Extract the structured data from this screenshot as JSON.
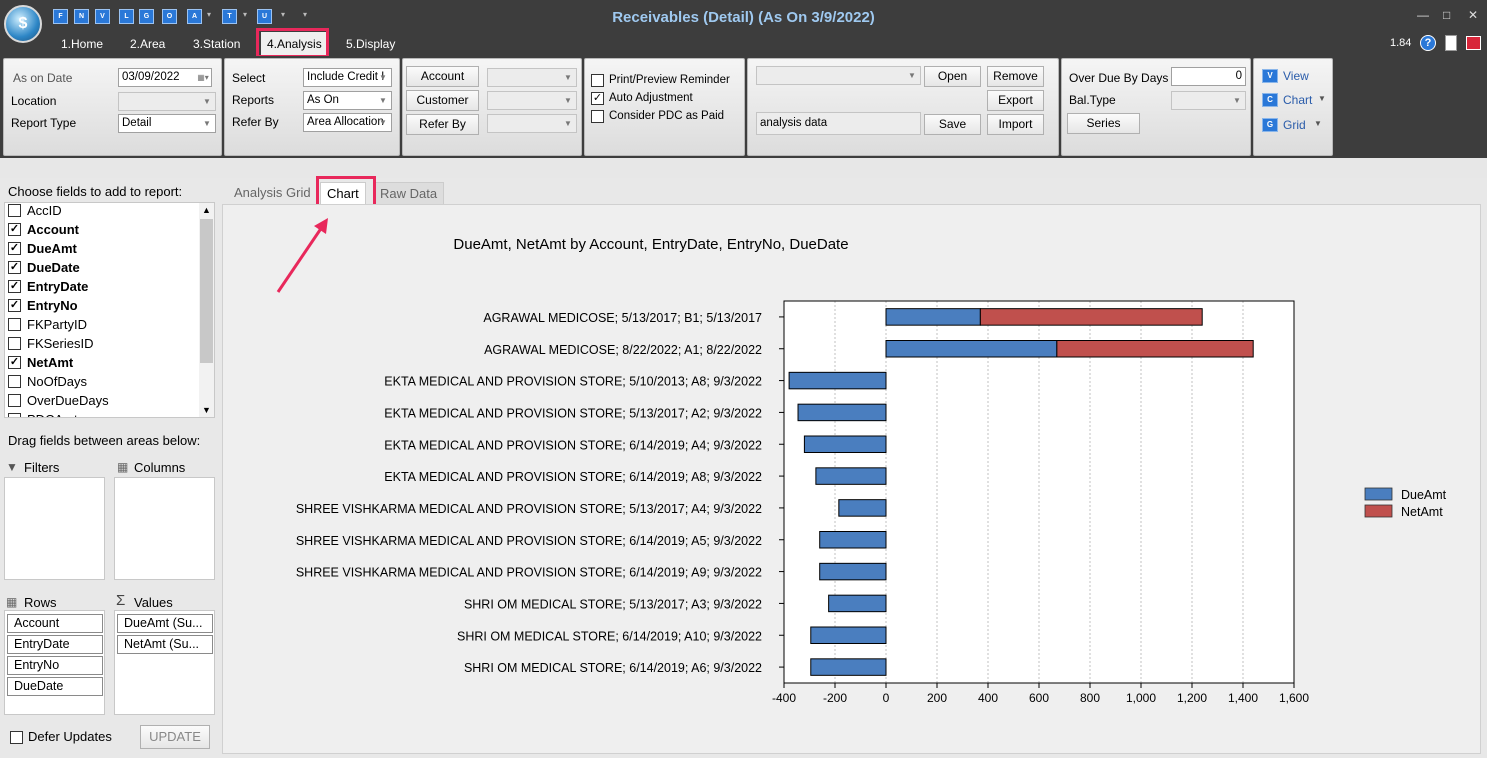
{
  "window": {
    "title": "Receivables (Detail) (As On 3/9/2022)",
    "version": "1.84"
  },
  "qat": [
    "F",
    "N",
    "V",
    "L",
    "G",
    "O",
    "A",
    "T",
    "U"
  ],
  "menu_tabs": [
    "1.Home",
    "2.Area",
    "3.Station",
    "4.Analysis",
    "5.Display"
  ],
  "ribbon": {
    "as_on_date_label": "As on Date",
    "as_on_date": "03/09/2022",
    "location_label": "Location",
    "report_type_label": "Report Type",
    "report_type": "Detail",
    "select_label": "Select",
    "select_value": "Include Credit I",
    "reports_label": "Reports",
    "reports_value": "As On",
    "refer_by_label": "Refer By",
    "refer_by_value": "Area Allocation",
    "account_btn": "Account",
    "customer_btn": "Customer",
    "refer_by_btn": "Refer By",
    "print_preview_reminder": "Print/Preview Reminder",
    "auto_adjustment": "Auto Adjustment",
    "consider_pdc": "Consider PDC as Paid",
    "analysis_data": "analysis data",
    "open_btn": "Open",
    "remove_btn": "Remove",
    "export_btn": "Export",
    "save_btn": "Save",
    "import_btn": "Import",
    "over_due_label": "Over Due By Days",
    "over_due_value": "0",
    "bal_type_label": "Bal.Type",
    "series_btn": "Series",
    "view_btn": "View",
    "chart_btn": "Chart",
    "grid_btn": "Grid"
  },
  "field_list": {
    "heading": "Choose fields to add to report:",
    "fields": [
      {
        "name": "AccID",
        "checked": false
      },
      {
        "name": "Account",
        "checked": true
      },
      {
        "name": "DueAmt",
        "checked": true
      },
      {
        "name": "DueDate",
        "checked": true
      },
      {
        "name": "EntryDate",
        "checked": true
      },
      {
        "name": "EntryNo",
        "checked": true
      },
      {
        "name": "FKPartyID",
        "checked": false
      },
      {
        "name": "FKSeriesID",
        "checked": false
      },
      {
        "name": "NetAmt",
        "checked": true
      },
      {
        "name": "NoOfDays",
        "checked": false
      },
      {
        "name": "OverDueDays",
        "checked": false
      },
      {
        "name": "PDCAmt",
        "checked": false
      }
    ],
    "drag_heading": "Drag fields between areas below:",
    "filters_label": "Filters",
    "columns_label": "Columns",
    "rows_label": "Rows",
    "values_label": "Values",
    "rows": [
      "Account",
      "EntryDate",
      "EntryNo",
      "DueDate"
    ],
    "values": [
      "DueAmt (Su...",
      "NetAmt (Su..."
    ],
    "defer_updates": "Defer Updates",
    "update_btn": "UPDATE"
  },
  "tabs": [
    "Analysis Grid",
    "Chart",
    "Raw Data"
  ],
  "chart_data": {
    "type": "bar",
    "orientation": "horizontal",
    "stacked": true,
    "title": "DueAmt, NetAmt by Account, EntryDate, EntryNo, DueDate",
    "categories": [
      "AGRAWAL MEDICOSE; 5/13/2017; B1; 5/13/2017",
      "AGRAWAL MEDICOSE; 8/22/2022; A1; 8/22/2022",
      "EKTA MEDICAL AND PROVISION STORE; 5/10/2013; A8; 9/3/2022",
      "EKTA MEDICAL AND PROVISION STORE; 5/13/2017; A2; 9/3/2022",
      "EKTA MEDICAL AND PROVISION STORE; 6/14/2019; A4; 9/3/2022",
      "EKTA MEDICAL AND PROVISION STORE; 6/14/2019; A8; 9/3/2022",
      "SHREE VISHKARMA MEDICAL AND PROVISION STORE; 5/13/2017; A4; 9/3/2022",
      "SHREE VISHKARMA MEDICAL AND PROVISION STORE; 6/14/2019; A5; 9/3/2022",
      "SHREE VISHKARMA MEDICAL AND PROVISION STORE; 6/14/2019; A9; 9/3/2022",
      "SHRI OM MEDICAL STORE; 5/13/2017; A3; 9/3/2022",
      "SHRI OM MEDICAL STORE; 6/14/2019; A10; 9/3/2022",
      "SHRI OM MEDICAL STORE; 6/14/2019; A6; 9/3/2022"
    ],
    "series": [
      {
        "name": "DueAmt",
        "color": "#4a7ebf",
        "values": [
          370,
          670,
          -380,
          -345,
          -320,
          -275,
          -185,
          -260,
          -260,
          -225,
          -295,
          -295
        ]
      },
      {
        "name": "NetAmt",
        "color": "#c0504d",
        "values": [
          870,
          770,
          0,
          0,
          0,
          0,
          0,
          0,
          0,
          0,
          0,
          0
        ]
      }
    ],
    "xlim": [
      -400,
      1600
    ],
    "xticks": [
      "-400",
      "-200",
      "0",
      "200",
      "400",
      "600",
      "800",
      "1,000",
      "1,200",
      "1,400",
      "1,600"
    ],
    "grid": true,
    "legend": "right"
  }
}
